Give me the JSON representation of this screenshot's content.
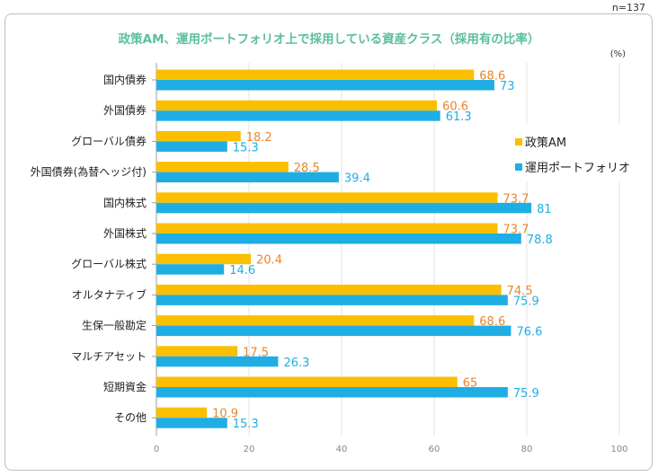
{
  "sample_size": "n=137",
  "colors": {
    "series_a": "#fbbf00",
    "series_b": "#1faee4",
    "label_a": "#e8862e",
    "label_b": "#1faee4",
    "title": "#5bbf9a"
  },
  "chart_data": {
    "type": "bar",
    "orientation": "horizontal",
    "title": "政策AM、運用ポートフォリオ上で採用している資産クラス（採用有の比率）",
    "unit": "(%)",
    "xlim": [
      0,
      100
    ],
    "ticks": [
      0,
      20,
      40,
      60,
      80,
      100
    ],
    "grid": true,
    "legend_position": "right",
    "categories": [
      "国内債券",
      "外国債券",
      "グローバル債券",
      "外国債券(為替ヘッジ付)",
      "国内株式",
      "外国株式",
      "グローバル株式",
      "オルタナティブ",
      "生保一般勘定",
      "マルチアセット",
      "短期資金",
      "その他"
    ],
    "series": [
      {
        "name": "政策AM",
        "values": [
          68.6,
          60.6,
          18.2,
          28.5,
          73.7,
          73.7,
          20.4,
          74.5,
          68.6,
          17.5,
          65,
          10.9
        ]
      },
      {
        "name": "運用ポートフォリオ",
        "values": [
          73,
          61.3,
          15.3,
          39.4,
          81,
          78.8,
          14.6,
          75.9,
          76.6,
          26.3,
          75.9,
          15.3
        ]
      }
    ]
  }
}
